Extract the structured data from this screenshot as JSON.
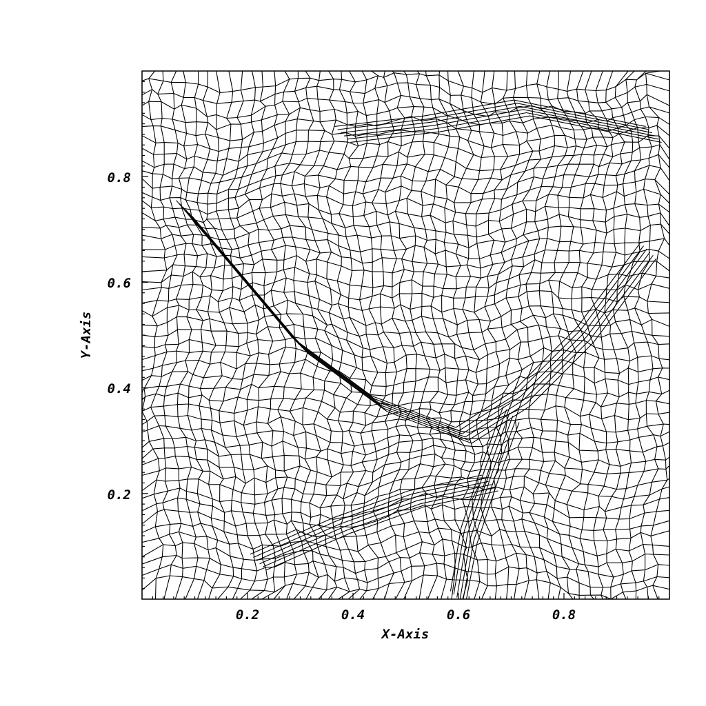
{
  "figure": {
    "xlabel": "X-Axis",
    "ylabel": "Y-Axis",
    "x_tick_labels": [
      "0.2",
      "0.4",
      "0.6",
      "0.8"
    ],
    "y_tick_labels": [
      "0.2",
      "0.4",
      "0.6",
      "0.8"
    ]
  },
  "chart_data": {
    "type": "mesh",
    "xlabel": "X-Axis",
    "ylabel": "Y-Axis",
    "xlim": [
      0.0,
      1.0
    ],
    "ylim": [
      0.0,
      1.0
    ],
    "x_ticks_major": [
      0.2,
      0.4,
      0.6,
      0.8
    ],
    "y_ticks_major": [
      0.2,
      0.4,
      0.6,
      0.8
    ],
    "grid": false,
    "line_color": "#000000",
    "background_color": "#ffffff"
  }
}
